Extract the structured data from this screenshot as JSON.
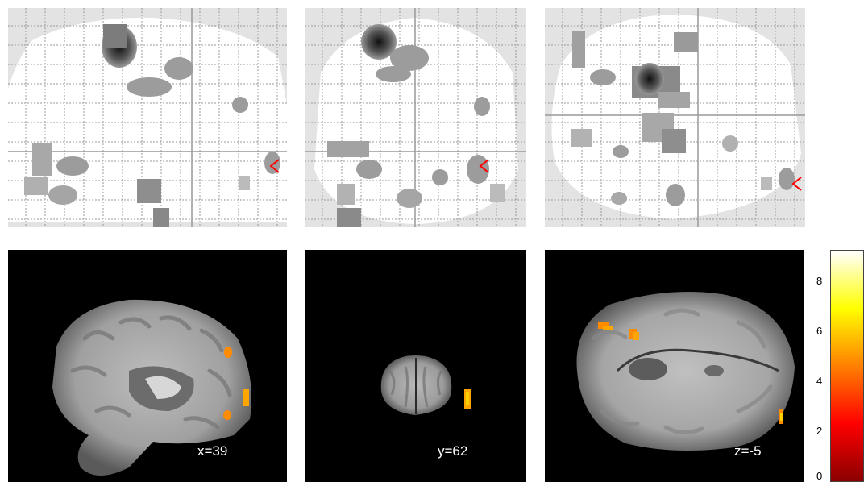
{
  "slices": {
    "sagittal": {
      "label": "x=39"
    },
    "coronal": {
      "label": "y=62"
    },
    "axial": {
      "label": "z=-5"
    }
  },
  "colorbar": {
    "ticks": [
      "0",
      "2",
      "4",
      "6",
      "8"
    ],
    "colors": [
      "#8b0000",
      "#ff0000",
      "#ff8000",
      "#ffff00",
      "#ffffff"
    ]
  },
  "colors": {
    "background": "#ffffff",
    "slice_background": "#000000",
    "glass_grid": "#9a9a9a",
    "glass_crosshair": "#999999",
    "marker": "#ff0000",
    "activation": "#ff8c00"
  },
  "icons": {
    "cursor_marker": "red-arrow-icon"
  }
}
